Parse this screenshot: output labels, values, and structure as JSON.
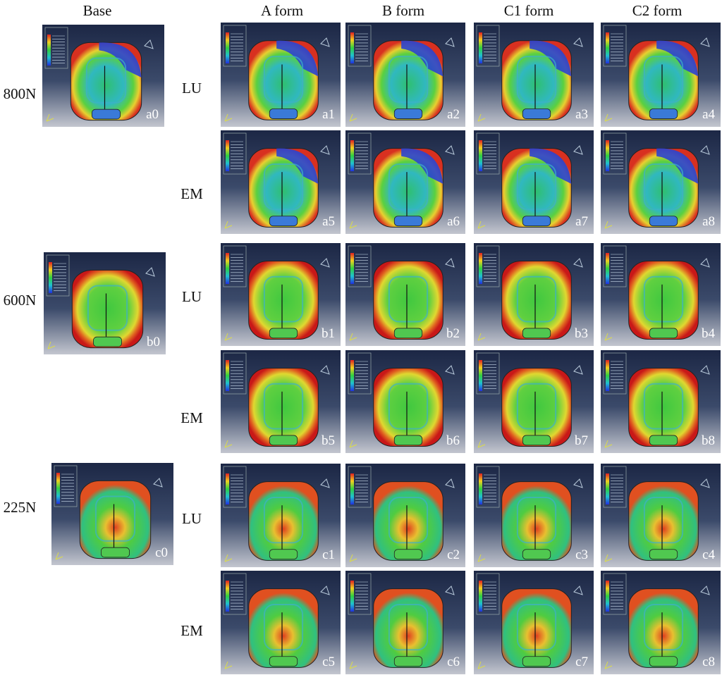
{
  "columns": [
    "Base",
    "A form",
    "B form",
    "C1 form",
    "C2 form"
  ],
  "loads": [
    {
      "label": "800N",
      "base_panel": "a0",
      "rows": [
        {
          "label": "LU",
          "panels": [
            "a1",
            "a2",
            "a3",
            "a4"
          ]
        },
        {
          "label": "EM",
          "panels": [
            "a5",
            "a6",
            "a7",
            "a8"
          ]
        }
      ]
    },
    {
      "label": "600N",
      "base_panel": "b0",
      "rows": [
        {
          "label": "LU",
          "panels": [
            "b1",
            "b2",
            "b3",
            "b4"
          ]
        },
        {
          "label": "EM",
          "panels": [
            "b5",
            "b6",
            "b7",
            "b8"
          ]
        }
      ]
    },
    {
      "label": "225N",
      "base_panel": "c0",
      "rows": [
        {
          "label": "LU",
          "panels": [
            "c1",
            "c2",
            "c3",
            "c4"
          ]
        },
        {
          "label": "EM",
          "panels": [
            "c5",
            "c6",
            "c7",
            "c8"
          ]
        }
      ]
    }
  ]
}
